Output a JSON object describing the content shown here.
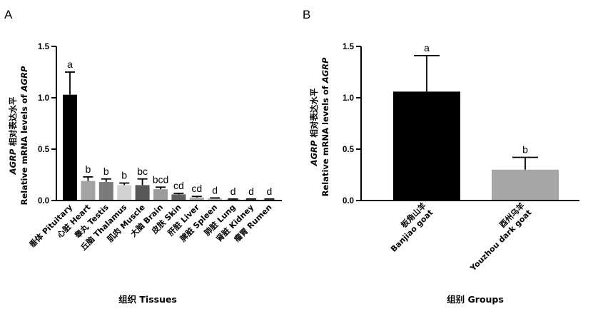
{
  "chart_data": [
    {
      "panel": "A",
      "type": "bar",
      "ylabel_line1_italic": "AGRP",
      "ylabel_line1_rest": " 相对表达水平",
      "ylabel_line2": "Relative mRNA levels of ",
      "ylabel_line2_italic": "AGRP",
      "xlabel": "组织 Tissues",
      "ylim": [
        0,
        1.5
      ],
      "yticks": [
        "0.0",
        "0.5",
        "1.0",
        "1.5"
      ],
      "categories": [
        "垂体 Pituitary",
        "心脏 Heart",
        "睾丸 Testis",
        "丘脑 Thalamus",
        "肌肉 Muscle",
        "大脑 Brain",
        "皮肤 Skin",
        "肝脏 Liver",
        "脾脏 Spleen",
        "肺脏 Lung",
        "肾脏 Kidney",
        "瘤胃 Rumen"
      ],
      "values": [
        1.03,
        0.19,
        0.18,
        0.15,
        0.15,
        0.11,
        0.06,
        0.03,
        0.02,
        0.01,
        0.01,
        0.01
      ],
      "errors": [
        0.22,
        0.04,
        0.03,
        0.02,
        0.06,
        0.02,
        0.01,
        0.01,
        0.005,
        0.005,
        0.005,
        0.005
      ],
      "significance": [
        "a",
        "b",
        "b",
        "b",
        "bc",
        "bcd",
        "cd",
        "cd",
        "d",
        "d",
        "d",
        "d"
      ],
      "colors": [
        "#000000",
        "#a3a3a3",
        "#7b7b7b",
        "#d2d2d2",
        "#585858",
        "#9c9c9c",
        "#606060",
        "#ababab",
        "#bfbfbf",
        "#8a8a8a",
        "#aaaaaa",
        "#c2c2c2"
      ]
    },
    {
      "panel": "B",
      "type": "bar",
      "ylabel_line1_italic": "AGRP",
      "ylabel_line1_rest": " 相对表达水平",
      "ylabel_line2": "Relative mRNA levels of ",
      "ylabel_line2_italic": "AGRP",
      "xlabel": "组别 Groups",
      "ylim": [
        0,
        1.5
      ],
      "yticks": [
        "0.0",
        "0.5",
        "1.0",
        "1.5"
      ],
      "categories": [
        {
          "cn": "板角山羊",
          "en": "Banjiao goat"
        },
        {
          "cn": "酉州乌羊",
          "en": "Youzhou dark goat"
        }
      ],
      "values": [
        1.06,
        0.3
      ],
      "errors": [
        0.35,
        0.12
      ],
      "significance": [
        "a",
        "b"
      ],
      "colors": [
        "#000000",
        "#a6a6a6"
      ]
    }
  ]
}
